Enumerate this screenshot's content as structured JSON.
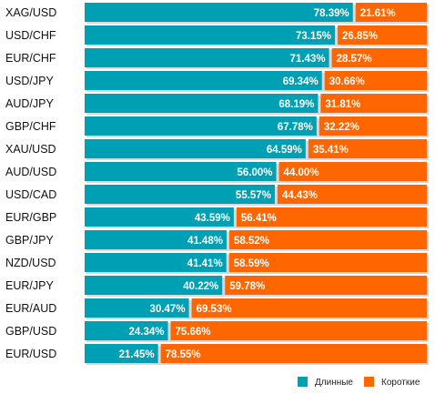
{
  "chart_data": {
    "type": "bar",
    "orientation": "horizontal",
    "stacked": true,
    "percent_stacked": true,
    "categories": [
      "XAG/USD",
      "USD/CHF",
      "EUR/CHF",
      "USD/JPY",
      "AUD/JPY",
      "GBP/CHF",
      "XAU/USD",
      "AUD/USD",
      "USD/CAD",
      "EUR/GBP",
      "GBP/JPY",
      "NZD/USD",
      "EUR/JPY",
      "EUR/AUD",
      "GBP/USD",
      "EUR/USD"
    ],
    "series": [
      {
        "name": "Длинные",
        "color": "#00a0b4",
        "values": [
          78.39,
          73.15,
          71.43,
          69.34,
          68.19,
          67.78,
          64.59,
          56.0,
          55.57,
          43.59,
          41.48,
          41.41,
          40.22,
          30.47,
          24.34,
          21.45
        ],
        "labels": [
          "78.39%",
          "73.15%",
          "71.43%",
          "69.34%",
          "68.19%",
          "67.78%",
          "64.59%",
          "56.00%",
          "55.57%",
          "43.59%",
          "41.48%",
          "41.41%",
          "40.22%",
          "30.47%",
          "24.34%",
          "21.45%"
        ]
      },
      {
        "name": "Короткие",
        "color": "#ff6600",
        "values": [
          21.61,
          26.85,
          28.57,
          30.66,
          31.81,
          32.22,
          35.41,
          44.0,
          44.43,
          56.41,
          58.52,
          58.59,
          59.78,
          69.53,
          75.66,
          78.55
        ],
        "labels": [
          "21.61%",
          "26.85%",
          "28.57%",
          "30.66%",
          "31.81%",
          "32.22%",
          "35.41%",
          "44.00%",
          "44.43%",
          "56.41%",
          "58.52%",
          "58.59%",
          "59.78%",
          "69.53%",
          "75.66%",
          "78.55%"
        ]
      }
    ],
    "xlim": [
      0,
      100
    ],
    "legend_position": "bottom-right",
    "grid": false
  }
}
